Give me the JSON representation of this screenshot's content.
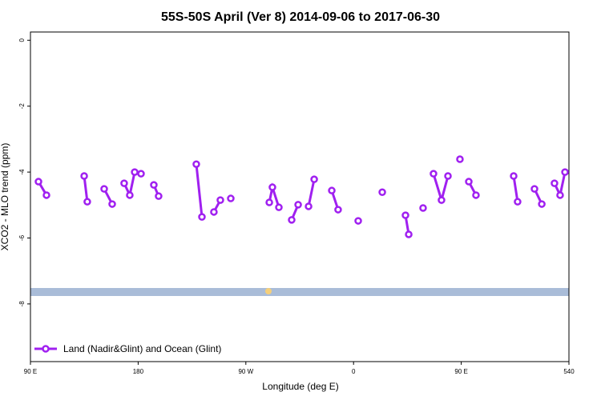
{
  "chart_data": {
    "type": "line",
    "title": "55S-50S April (Ver 8)   2014-09-06 to 2017-06-30",
    "x_label": "Longitude (deg E)",
    "y_label": "XCO2 - MLO trend (ppm)",
    "xlim": [
      90,
      540
    ],
    "ylim": [
      -9.75,
      0.25
    ],
    "xticks": [
      {
        "value": 90,
        "label": "90 E"
      },
      180,
      {
        "value": 270,
        "label": "90 W"
      },
      {
        "value": 360,
        "label": "0"
      },
      {
        "value": 450,
        "label": "90 E"
      },
      540
    ],
    "yticks": [
      0,
      -2,
      -4,
      -6,
      -8
    ],
    "legend": "bottom-left",
    "series": [
      {
        "name": "Land (Nadir&Glint) and Ocean (Glint)",
        "color": "#a020f0",
        "x": [
          96.7,
          103.4,
          null,
          134.9,
          137.5,
          null,
          151.6,
          158.3,
          null,
          168.3,
          173.0,
          177.1,
          182.4,
          null,
          193.1,
          197.1,
          null,
          228.6,
          233.3,
          null,
          243.3,
          248.7,
          null,
          257.4,
          null,
          289.6,
          292.2,
          297.6,
          null,
          308.3,
          313.7,
          null,
          322.4,
          327.1,
          null,
          341.8,
          347.1,
          null,
          363.9,
          null,
          384.0,
          null,
          403.4,
          406.1,
          null,
          418.1,
          null,
          426.8,
          433.5,
          438.9,
          null,
          448.9,
          null,
          456.3,
          462.3,
          null,
          493.8,
          497.1,
          null,
          511.2,
          517.3,
          null,
          527.9,
          532.6,
          536.7
        ],
        "values": [
          -4.29,
          -4.7,
          null,
          -4.12,
          -4.9,
          null,
          -4.51,
          -4.97,
          null,
          -4.34,
          -4.7,
          -4.0,
          -4.05,
          null,
          -4.39,
          -4.73,
          null,
          -3.76,
          -5.36,
          null,
          -5.21,
          -4.85,
          null,
          -4.8,
          null,
          -4.92,
          -4.46,
          -5.07,
          null,
          -5.45,
          -4.99,
          null,
          -5.04,
          -4.22,
          null,
          -4.56,
          -5.14,
          null,
          -5.48,
          null,
          -4.61,
          null,
          -5.31,
          -5.89,
          null,
          -5.09,
          null,
          -4.05,
          -4.85,
          -4.12,
          null,
          -3.61,
          null,
          -4.29,
          -4.7,
          null,
          -4.12,
          -4.9,
          null,
          -4.51,
          -4.97,
          null,
          -4.34,
          -4.7,
          -4.0
        ]
      }
    ]
  }
}
